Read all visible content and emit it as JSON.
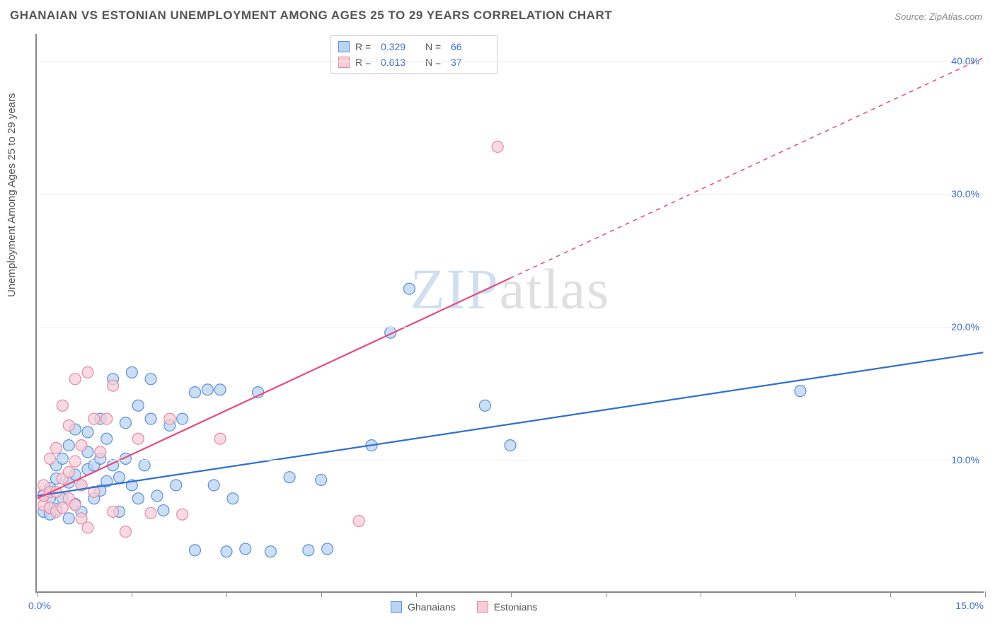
{
  "title": "GHANAIAN VS ESTONIAN UNEMPLOYMENT AMONG AGES 25 TO 29 YEARS CORRELATION CHART",
  "source": "Source: ZipAtlas.com",
  "ylabel": "Unemployment Among Ages 25 to 29 years",
  "watermark_z": "ZIP",
  "watermark_rest": "atlas",
  "chart": {
    "type": "scatter",
    "xlim": [
      0,
      15
    ],
    "ylim": [
      0,
      42
    ],
    "x_ticks": [
      0,
      1.5,
      3,
      4.5,
      6,
      7.5,
      9,
      10.5,
      12,
      13.5,
      15
    ],
    "x_tick_labels": {
      "0": "0.0%",
      "15": "15.0%"
    },
    "y_gridlines": [
      10,
      20,
      30,
      40
    ],
    "y_tick_labels": {
      "10": "10.0%",
      "20": "20.0%",
      "30": "30.0%",
      "40": "40.0%"
    },
    "background_color": "#ffffff",
    "grid_color": "#eeeeee",
    "axis_color": "#888888",
    "tick_label_color": "#3b6fd4",
    "marker_radius": 8,
    "marker_stroke_width": 1.2,
    "trend_line_width": 2.2
  },
  "series": [
    {
      "name": "Ghanaians",
      "marker_fill": "#b9d3f2",
      "marker_stroke": "#5a8fd6",
      "line_color": "#2f6fd0",
      "R": "0.329",
      "N": "66",
      "trend": {
        "x1": 0,
        "y1": 7.2,
        "x2": 15,
        "y2": 18.0,
        "solid_to_x": 15
      },
      "points": [
        [
          0.1,
          7.3
        ],
        [
          0.1,
          6.0
        ],
        [
          0.2,
          7.0
        ],
        [
          0.2,
          7.8
        ],
        [
          0.2,
          5.8
        ],
        [
          0.3,
          8.5
        ],
        [
          0.3,
          6.2
        ],
        [
          0.3,
          9.5
        ],
        [
          0.4,
          7.0
        ],
        [
          0.4,
          10.0
        ],
        [
          0.5,
          5.5
        ],
        [
          0.5,
          8.2
        ],
        [
          0.5,
          11.0
        ],
        [
          0.6,
          6.6
        ],
        [
          0.6,
          8.8
        ],
        [
          0.6,
          12.2
        ],
        [
          0.7,
          6.0
        ],
        [
          0.7,
          8.0
        ],
        [
          0.8,
          9.2
        ],
        [
          0.8,
          10.5
        ],
        [
          0.8,
          12.0
        ],
        [
          0.9,
          7.0
        ],
        [
          0.9,
          9.5
        ],
        [
          1.0,
          13.0
        ],
        [
          1.0,
          7.6
        ],
        [
          1.0,
          10.0
        ],
        [
          1.1,
          11.5
        ],
        [
          1.1,
          8.3
        ],
        [
          1.2,
          9.5
        ],
        [
          1.2,
          16.0
        ],
        [
          1.3,
          6.0
        ],
        [
          1.3,
          8.6
        ],
        [
          1.4,
          10.0
        ],
        [
          1.4,
          12.7
        ],
        [
          1.5,
          16.5
        ],
        [
          1.5,
          8.0
        ],
        [
          1.6,
          7.0
        ],
        [
          1.6,
          14.0
        ],
        [
          1.7,
          9.5
        ],
        [
          1.8,
          16.0
        ],
        [
          1.8,
          13.0
        ],
        [
          1.9,
          7.2
        ],
        [
          2.0,
          6.1
        ],
        [
          2.1,
          12.5
        ],
        [
          2.2,
          8.0
        ],
        [
          2.3,
          13.0
        ],
        [
          2.5,
          15.0
        ],
        [
          2.5,
          3.1
        ],
        [
          2.7,
          15.2
        ],
        [
          2.8,
          8.0
        ],
        [
          2.9,
          15.2
        ],
        [
          3.0,
          3.0
        ],
        [
          3.1,
          7.0
        ],
        [
          3.3,
          3.2
        ],
        [
          3.5,
          15.0
        ],
        [
          3.7,
          3.0
        ],
        [
          4.0,
          8.6
        ],
        [
          4.3,
          3.1
        ],
        [
          4.5,
          8.4
        ],
        [
          4.6,
          3.2
        ],
        [
          5.3,
          11.0
        ],
        [
          5.6,
          19.5
        ],
        [
          5.9,
          22.8
        ],
        [
          7.1,
          14.0
        ],
        [
          7.5,
          11.0
        ],
        [
          12.1,
          15.1
        ]
      ]
    },
    {
      "name": "Estonians",
      "marker_fill": "#f7cdd8",
      "marker_stroke": "#e48aa5",
      "line_color": "#e84a7a",
      "R": "0.613",
      "N": "37",
      "trend": {
        "x1": 0,
        "y1": 7.0,
        "x2": 15,
        "y2": 40.2,
        "solid_to_x": 7.5
      },
      "points": [
        [
          0.1,
          6.5
        ],
        [
          0.1,
          7.2
        ],
        [
          0.1,
          8.0
        ],
        [
          0.2,
          6.3
        ],
        [
          0.2,
          7.5
        ],
        [
          0.2,
          10.0
        ],
        [
          0.3,
          6.0
        ],
        [
          0.3,
          7.5
        ],
        [
          0.3,
          10.8
        ],
        [
          0.4,
          6.3
        ],
        [
          0.4,
          8.5
        ],
        [
          0.4,
          14.0
        ],
        [
          0.5,
          7.0
        ],
        [
          0.5,
          9.0
        ],
        [
          0.5,
          12.5
        ],
        [
          0.6,
          6.5
        ],
        [
          0.6,
          9.8
        ],
        [
          0.6,
          16.0
        ],
        [
          0.7,
          5.5
        ],
        [
          0.7,
          8.0
        ],
        [
          0.7,
          11.0
        ],
        [
          0.8,
          4.8
        ],
        [
          0.8,
          16.5
        ],
        [
          0.9,
          13.0
        ],
        [
          0.9,
          7.5
        ],
        [
          1.0,
          10.5
        ],
        [
          1.1,
          13.0
        ],
        [
          1.2,
          15.5
        ],
        [
          1.2,
          6.0
        ],
        [
          1.4,
          4.5
        ],
        [
          1.6,
          11.5
        ],
        [
          1.8,
          5.9
        ],
        [
          2.1,
          13.0
        ],
        [
          2.3,
          5.8
        ],
        [
          2.9,
          11.5
        ],
        [
          5.1,
          5.3
        ],
        [
          7.3,
          33.5
        ]
      ]
    }
  ],
  "stats_box": {
    "rows": [
      {
        "series": 0,
        "R_label": "R =",
        "N_label": "N ="
      },
      {
        "series": 1,
        "R_label": "R =",
        "N_label": "N ="
      }
    ]
  },
  "bottom_legend": [
    {
      "series": 0
    },
    {
      "series": 1
    }
  ]
}
